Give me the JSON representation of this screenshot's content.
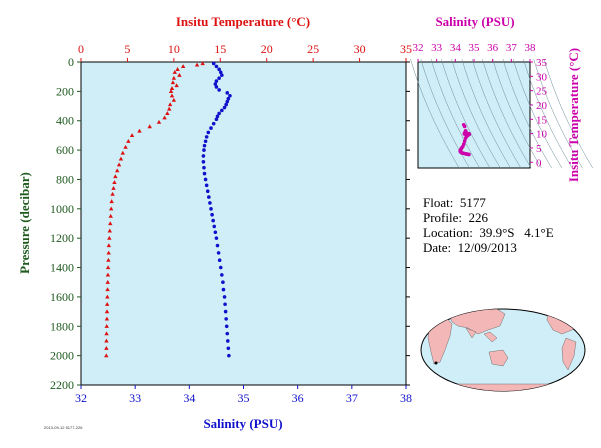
{
  "colors": {
    "temperature": "#dd1111",
    "salinity": "#1111cc",
    "pressure": "#1f5a1f",
    "ts_inset": "#cc00aa",
    "plot_bg": "#d0eef8"
  },
  "info": {
    "float": "Float:  5177",
    "profile": "Profile:  226",
    "location": "Location:  39.9°S   4.1°E",
    "date": "Date:  12/09/2013"
  },
  "footer_text": "2013-09-12  5177-226",
  "chart_data": [
    {
      "type": "scatter",
      "ylabel": "Pressure (decibar)",
      "ylim": [
        2200,
        0
      ],
      "yticks": [
        0,
        200,
        400,
        600,
        800,
        1000,
        1200,
        1400,
        1600,
        1800,
        2000,
        2200
      ],
      "axes": {
        "temperature": {
          "label": "Insitu Temperature (°C)",
          "lim": [
            0,
            35
          ],
          "ticks": [
            0,
            5,
            10,
            15,
            20,
            25,
            30,
            35
          ]
        },
        "salinity": {
          "label": "Salinity (PSU)",
          "lim": [
            32,
            38
          ],
          "ticks": [
            32,
            33,
            34,
            35,
            36,
            37,
            38
          ]
        }
      },
      "series": [
        {
          "marker": "triangle",
          "x_axis": "temperature",
          "points": [
            [
              13.1,
              10
            ],
            [
              12.5,
              20
            ],
            [
              11.0,
              30
            ],
            [
              10.4,
              50
            ],
            [
              10.1,
              70
            ],
            [
              10.6,
              90
            ],
            [
              10.0,
              110
            ],
            [
              9.9,
              140
            ],
            [
              10.3,
              160
            ],
            [
              9.8,
              180
            ],
            [
              9.7,
              200
            ],
            [
              9.8,
              230
            ],
            [
              10.0,
              260
            ],
            [
              9.6,
              290
            ],
            [
              9.5,
              320
            ],
            [
              9.3,
              350
            ],
            [
              9.0,
              380
            ],
            [
              8.4,
              410
            ],
            [
              7.4,
              440
            ],
            [
              6.3,
              470
            ],
            [
              5.5,
              500
            ],
            [
              5.1,
              540
            ],
            [
              4.8,
              580
            ],
            [
              4.5,
              620
            ],
            [
              4.3,
              660
            ],
            [
              4.1,
              700
            ],
            [
              3.9,
              740
            ],
            [
              3.7,
              780
            ],
            [
              3.6,
              820
            ],
            [
              3.5,
              860
            ],
            [
              3.4,
              900
            ],
            [
              3.3,
              950
            ],
            [
              3.25,
              1000
            ],
            [
              3.2,
              1050
            ],
            [
              3.15,
              1100
            ],
            [
              3.1,
              1150
            ],
            [
              3.05,
              1200
            ],
            [
              3.0,
              1250
            ],
            [
              2.98,
              1300
            ],
            [
              2.95,
              1350
            ],
            [
              2.92,
              1400
            ],
            [
              2.9,
              1450
            ],
            [
              2.88,
              1500
            ],
            [
              2.86,
              1550
            ],
            [
              2.84,
              1600
            ],
            [
              2.82,
              1650
            ],
            [
              2.8,
              1700
            ],
            [
              2.79,
              1750
            ],
            [
              2.77,
              1800
            ],
            [
              2.75,
              1850
            ],
            [
              2.74,
              1900
            ],
            [
              2.73,
              1950
            ],
            [
              2.72,
              2000
            ]
          ]
        },
        {
          "marker": "circle",
          "x_axis": "salinity",
          "points": [
            [
              34.45,
              10
            ],
            [
              34.5,
              30
            ],
            [
              34.55,
              50
            ],
            [
              34.58,
              70
            ],
            [
              34.6,
              90
            ],
            [
              34.55,
              110
            ],
            [
              34.5,
              130
            ],
            [
              34.48,
              150
            ],
            [
              34.5,
              170
            ],
            [
              34.55,
              190
            ],
            [
              34.7,
              210
            ],
            [
              34.75,
              230
            ],
            [
              34.72,
              250
            ],
            [
              34.7,
              270
            ],
            [
              34.68,
              290
            ],
            [
              34.65,
              310
            ],
            [
              34.6,
              330
            ],
            [
              34.55,
              350
            ],
            [
              34.52,
              370
            ],
            [
              34.5,
              390
            ],
            [
              34.45,
              420
            ],
            [
              34.4,
              450
            ],
            [
              34.35,
              480
            ],
            [
              34.32,
              510
            ],
            [
              34.3,
              540
            ],
            [
              34.28,
              570
            ],
            [
              34.27,
              600
            ],
            [
              34.26,
              640
            ],
            [
              34.26,
              680
            ],
            [
              34.27,
              720
            ],
            [
              34.28,
              760
            ],
            [
              34.3,
              800
            ],
            [
              34.32,
              840
            ],
            [
              34.34,
              880
            ],
            [
              34.36,
              920
            ],
            [
              34.38,
              960
            ],
            [
              34.4,
              1000
            ],
            [
              34.42,
              1040
            ],
            [
              34.44,
              1080
            ],
            [
              34.46,
              1120
            ],
            [
              34.48,
              1160
            ],
            [
              34.5,
              1200
            ],
            [
              34.52,
              1250
            ],
            [
              34.54,
              1300
            ],
            [
              34.56,
              1350
            ],
            [
              34.58,
              1400
            ],
            [
              34.6,
              1450
            ],
            [
              34.62,
              1500
            ],
            [
              34.63,
              1550
            ],
            [
              34.65,
              1600
            ],
            [
              34.66,
              1650
            ],
            [
              34.67,
              1700
            ],
            [
              34.68,
              1750
            ],
            [
              34.69,
              1800
            ],
            [
              34.7,
              1850
            ],
            [
              34.71,
              1900
            ],
            [
              34.72,
              1950
            ],
            [
              34.73,
              2000
            ]
          ]
        }
      ]
    },
    {
      "type": "scatter",
      "xlabel": "Salinity (PSU)",
      "ylabel": "Insitu Temperature (°C)",
      "xlim": [
        32,
        38
      ],
      "ylim": [
        -2,
        35
      ],
      "xticks": [
        32,
        33,
        34,
        35,
        36,
        37,
        38
      ],
      "yticks": [
        0,
        5,
        10,
        15,
        20,
        25,
        30,
        35
      ],
      "density_contours": true,
      "series": [
        {
          "points": [
            [
              34.45,
              13.1
            ],
            [
              34.5,
              12.5
            ],
            [
              34.55,
              11.0
            ],
            [
              34.58,
              10.4
            ],
            [
              34.6,
              10.1
            ],
            [
              34.55,
              10.6
            ],
            [
              34.5,
              10.0
            ],
            [
              34.48,
              9.9
            ],
            [
              34.5,
              10.3
            ],
            [
              34.55,
              9.8
            ],
            [
              34.7,
              9.7
            ],
            [
              34.75,
              9.8
            ],
            [
              34.72,
              10.0
            ],
            [
              34.7,
              9.6
            ],
            [
              34.68,
              9.5
            ],
            [
              34.65,
              9.3
            ],
            [
              34.6,
              9.0
            ],
            [
              34.55,
              8.4
            ],
            [
              34.5,
              7.4
            ],
            [
              34.45,
              6.3
            ],
            [
              34.4,
              5.5
            ],
            [
              34.35,
              5.1
            ],
            [
              34.32,
              4.8
            ],
            [
              34.3,
              4.5
            ],
            [
              34.28,
              4.3
            ],
            [
              34.27,
              4.1
            ],
            [
              34.26,
              3.9
            ],
            [
              34.27,
              3.7
            ],
            [
              34.3,
              3.5
            ],
            [
              34.34,
              3.3
            ],
            [
              34.4,
              3.2
            ],
            [
              34.46,
              3.1
            ],
            [
              34.52,
              3.0
            ],
            [
              34.58,
              2.9
            ],
            [
              34.63,
              2.85
            ],
            [
              34.67,
              2.8
            ],
            [
              34.7,
              2.76
            ],
            [
              34.73,
              2.72
            ]
          ]
        }
      ]
    }
  ],
  "map": {
    "description_labels": []
  }
}
